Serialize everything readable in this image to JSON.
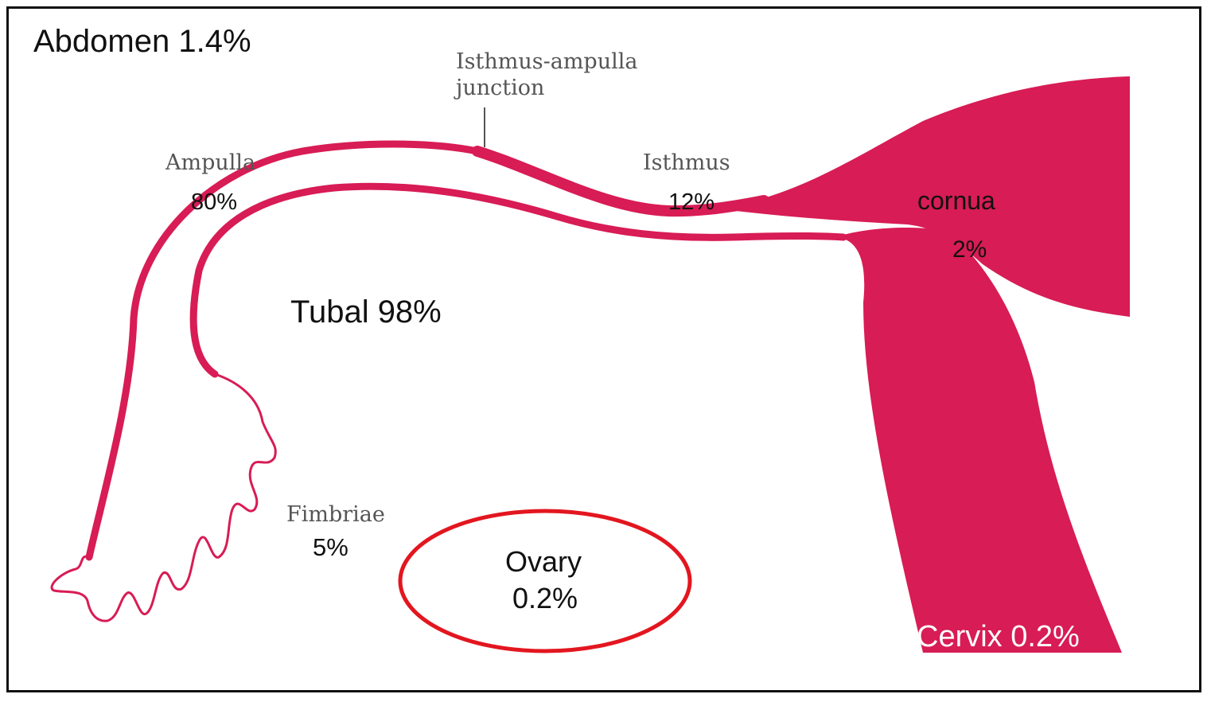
{
  "colors": {
    "tissue": "#d81c55",
    "ovary_outline": "#e3161f",
    "frame": "#111111",
    "text_dark": "#111111",
    "text_gray": "#555555",
    "text_on_tissue": "#ffffff"
  },
  "labels": {
    "abdomen": "Abdomen 1.4%",
    "isthmus_ampulla_line1": "Isthmus-ampulla",
    "isthmus_ampulla_line2": "junction",
    "ampulla_name": "Ampulla",
    "ampulla_pct": "80%",
    "isthmus_name": "Isthmus",
    "isthmus_pct": "12%",
    "cornua_name": "cornua",
    "cornua_pct": "2%",
    "tubal": "Tubal 98%",
    "fimbriae_name": "Fimbriae",
    "fimbriae_pct": "5%",
    "ovary_name": "Ovary",
    "ovary_pct": "0.2%",
    "cervix": "Cervix 0.2%"
  },
  "icons": [
    "fallopian-tube-shape",
    "uterus-shape",
    "ovary-outline"
  ]
}
